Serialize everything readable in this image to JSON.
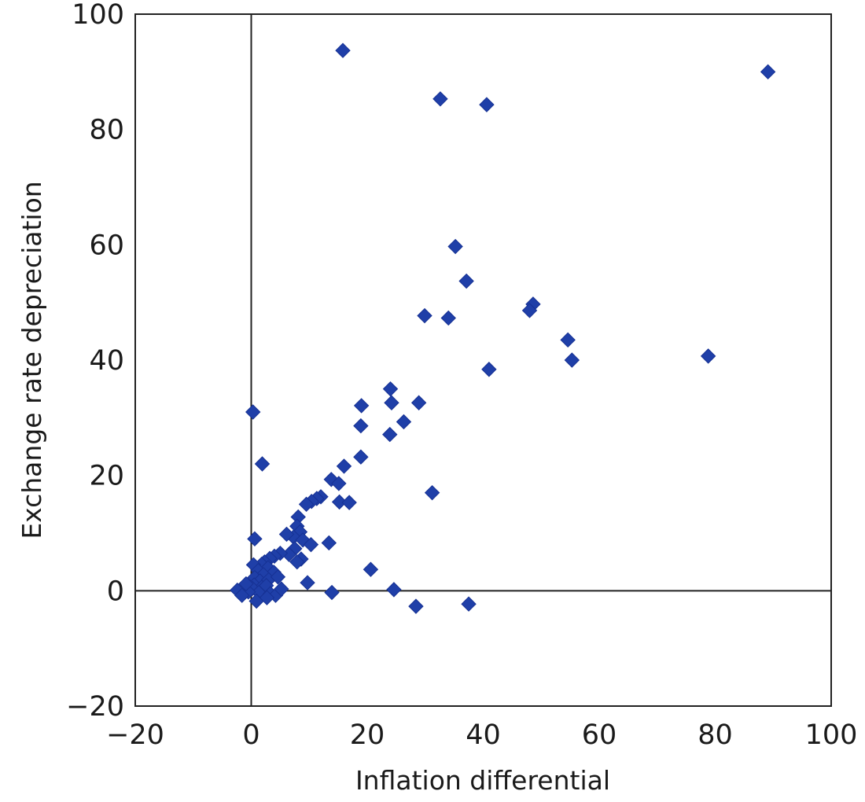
{
  "chart_data": {
    "type": "scatter",
    "title": "",
    "xlabel": "Inflation differential",
    "ylabel": "Exchange rate depreciation",
    "xlim": [
      -20,
      100
    ],
    "ylim": [
      -20,
      100
    ],
    "x_ticks": [
      -20,
      0,
      20,
      40,
      60,
      80,
      100
    ],
    "y_ticks": [
      -20,
      0,
      20,
      40,
      60,
      80,
      100
    ],
    "x_tick_labels": [
      "−20",
      "0",
      "20",
      "40",
      "60",
      "80",
      "100"
    ],
    "y_tick_labels": [
      "−20",
      "0",
      "20",
      "40",
      "60",
      "80",
      "100"
    ],
    "reference_lines": {
      "x": 0,
      "y": 0
    },
    "grid": false,
    "legend": "none",
    "marker": "diamond",
    "marker_color": "#1f3fa8",
    "series": [
      {
        "points": [
          [
            15.8,
            93.7
          ],
          [
            89.1,
            90.0
          ],
          [
            32.6,
            85.3
          ],
          [
            40.6,
            84.3
          ],
          [
            0.3,
            31.0
          ],
          [
            1.9,
            22.0
          ],
          [
            35.2,
            59.7
          ],
          [
            37.1,
            53.7
          ],
          [
            29.9,
            47.7
          ],
          [
            34.0,
            47.3
          ],
          [
            48.6,
            49.7
          ],
          [
            48.0,
            48.6
          ],
          [
            54.6,
            43.5
          ],
          [
            55.3,
            40.0
          ],
          [
            78.8,
            40.7
          ],
          [
            41.0,
            38.4
          ],
          [
            24.0,
            35.0
          ],
          [
            24.2,
            32.6
          ],
          [
            28.9,
            32.6
          ],
          [
            19.0,
            32.1
          ],
          [
            26.3,
            29.3
          ],
          [
            18.9,
            28.6
          ],
          [
            23.9,
            27.1
          ],
          [
            18.9,
            23.2
          ],
          [
            16.0,
            21.6
          ],
          [
            13.8,
            19.3
          ],
          [
            15.1,
            18.6
          ],
          [
            31.2,
            17.0
          ],
          [
            12.0,
            16.3
          ],
          [
            11.3,
            16.0
          ],
          [
            10.4,
            15.5
          ],
          [
            9.5,
            15.0
          ],
          [
            15.2,
            15.4
          ],
          [
            16.9,
            15.3
          ],
          [
            8.1,
            12.8
          ],
          [
            7.9,
            11.2
          ],
          [
            8.4,
            10.2
          ],
          [
            7.3,
            9.3
          ],
          [
            6.1,
            9.8
          ],
          [
            8.9,
            8.8
          ],
          [
            10.3,
            8.0
          ],
          [
            7.5,
            7.3
          ],
          [
            0.6,
            9.0
          ],
          [
            13.4,
            8.3
          ],
          [
            6.5,
            6.3
          ],
          [
            8.6,
            5.5
          ],
          [
            7.9,
            5.0
          ],
          [
            5.0,
            6.5
          ],
          [
            4.0,
            6.0
          ],
          [
            3.2,
            5.6
          ],
          [
            2.3,
            5.0
          ],
          [
            1.8,
            4.6
          ],
          [
            2.9,
            4.0
          ],
          [
            0.4,
            4.5
          ],
          [
            1.2,
            3.5
          ],
          [
            3.9,
            3.2
          ],
          [
            2.1,
            2.8
          ],
          [
            0.6,
            2.3
          ],
          [
            1.5,
            1.7
          ],
          [
            3.0,
            1.9
          ],
          [
            4.6,
            2.4
          ],
          [
            0.5,
            1.0
          ],
          [
            1.8,
            0.6
          ],
          [
            2.6,
            0.9
          ],
          [
            0.2,
            0.4
          ],
          [
            1.3,
            -0.3
          ],
          [
            -0.5,
            -0.2
          ],
          [
            -2.4,
            0.1
          ],
          [
            -1.6,
            -0.8
          ],
          [
            3.3,
            -0.5
          ],
          [
            4.2,
            -0.8
          ],
          [
            0.9,
            -1.8
          ],
          [
            2.7,
            -1.2
          ],
          [
            -0.9,
            1.2
          ],
          [
            5.2,
            0.3
          ],
          [
            9.7,
            1.4
          ],
          [
            13.9,
            -0.3
          ],
          [
            20.6,
            3.7
          ],
          [
            24.6,
            0.2
          ],
          [
            28.4,
            -2.7
          ],
          [
            37.5,
            -2.3
          ]
        ]
      }
    ]
  }
}
